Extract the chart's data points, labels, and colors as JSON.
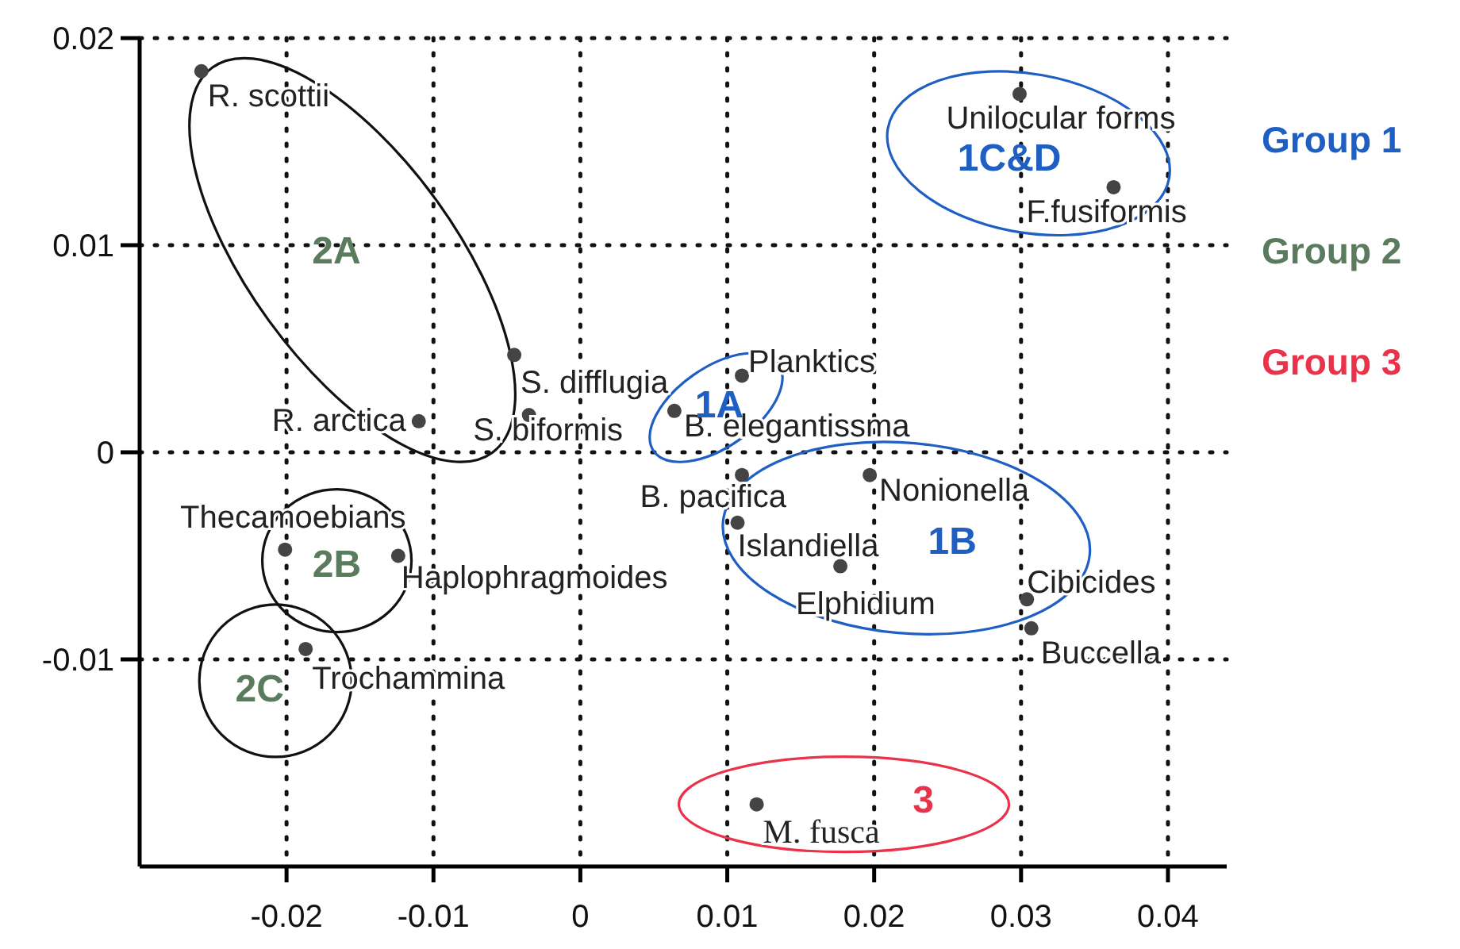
{
  "chart_data": {
    "type": "scatter",
    "xlim": [
      -0.03,
      0.044
    ],
    "ylim": [
      -0.02,
      0.02
    ],
    "xticks": [
      -0.02,
      -0.01,
      0,
      0.01,
      0.02,
      0.03,
      0.04
    ],
    "yticks": [
      -0.01,
      0,
      0.01,
      0.02
    ],
    "grid": true,
    "marker": "circle",
    "annotations": [
      "Group 1",
      "Group 2",
      "Group 3",
      "1A",
      "1B",
      "1C&D",
      "2A",
      "2B",
      "2C",
      "3"
    ],
    "series": [
      {
        "color": "#444444",
        "x": [
          0.0064,
          0.011
        ],
        "values": [
          0.002,
          0.0037
        ],
        "value_labels": [
          "B. elegantissma",
          "Planktics"
        ]
      },
      {
        "color": "#444444",
        "x": [
          0.011,
          0.0197,
          0.0107,
          0.0177,
          0.0304,
          0.0307
        ],
        "values": [
          -0.0011,
          -0.0011,
          -0.0034,
          -0.0055,
          -0.0071,
          -0.0085
        ],
        "value_labels": [
          "B. pacifica",
          "Nonionella",
          "Islandiella",
          "Elphidium",
          "Cibicides",
          "Buccella"
        ]
      },
      {
        "color": "#444444",
        "x": [
          0.0299,
          0.0363
        ],
        "values": [
          0.0173,
          0.0128
        ],
        "value_labels": [
          "Unilocular forms",
          "F.fusiformis"
        ]
      },
      {
        "color": "#444444",
        "x": [
          -0.0258,
          -0.011,
          -0.0045,
          -0.0035
        ],
        "values": [
          0.0184,
          0.0015,
          0.0047,
          0.0018
        ],
        "value_labels": [
          "R. scottii",
          "R. arctica",
          "S. difflugia",
          "S. biformis"
        ]
      },
      {
        "color": "#444444",
        "x": [
          -0.0201,
          -0.0124
        ],
        "values": [
          -0.0047,
          -0.005
        ],
        "value_labels": [
          "Thecamoebians",
          "Haplophragmoides"
        ]
      },
      {
        "color": "#444444",
        "x": [
          -0.0187
        ],
        "values": [
          -0.0095
        ],
        "value_labels": [
          "Trochammina"
        ]
      },
      {
        "color": "#444444",
        "x": [
          0.012
        ],
        "values": [
          -0.017
        ],
        "value_labels": [
          "M. fusca"
        ]
      }
    ]
  }
}
